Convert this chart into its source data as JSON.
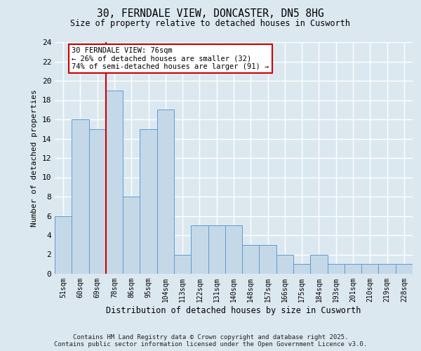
{
  "title1": "30, FERNDALE VIEW, DONCASTER, DN5 8HG",
  "title2": "Size of property relative to detached houses in Cusworth",
  "xlabel": "Distribution of detached houses by size in Cusworth",
  "ylabel": "Number of detached properties",
  "categories": [
    "51sqm",
    "60sqm",
    "69sqm",
    "78sqm",
    "86sqm",
    "95sqm",
    "104sqm",
    "113sqm",
    "122sqm",
    "131sqm",
    "140sqm",
    "148sqm",
    "157sqm",
    "166sqm",
    "175sqm",
    "184sqm",
    "193sqm",
    "201sqm",
    "210sqm",
    "219sqm",
    "228sqm"
  ],
  "values": [
    6,
    16,
    15,
    19,
    8,
    15,
    17,
    2,
    5,
    5,
    5,
    3,
    3,
    2,
    1,
    2,
    1,
    1,
    1,
    1,
    1
  ],
  "bar_color": "#c5d8e8",
  "bar_edgecolor": "#5b9bd5",
  "ylim": [
    0,
    24
  ],
  "yticks": [
    0,
    2,
    4,
    6,
    8,
    10,
    12,
    14,
    16,
    18,
    20,
    22,
    24
  ],
  "ref_line_color": "#cc0000",
  "annotation_text": "30 FERNDALE VIEW: 76sqm\n← 26% of detached houses are smaller (32)\n74% of semi-detached houses are larger (91) →",
  "annotation_box_color": "#cc0000",
  "footnote": "Contains HM Land Registry data © Crown copyright and database right 2025.\nContains public sector information licensed under the Open Government Licence v3.0.",
  "background_color": "#dce8f0",
  "plot_background": "#dce8f0",
  "grid_color": "#ffffff"
}
